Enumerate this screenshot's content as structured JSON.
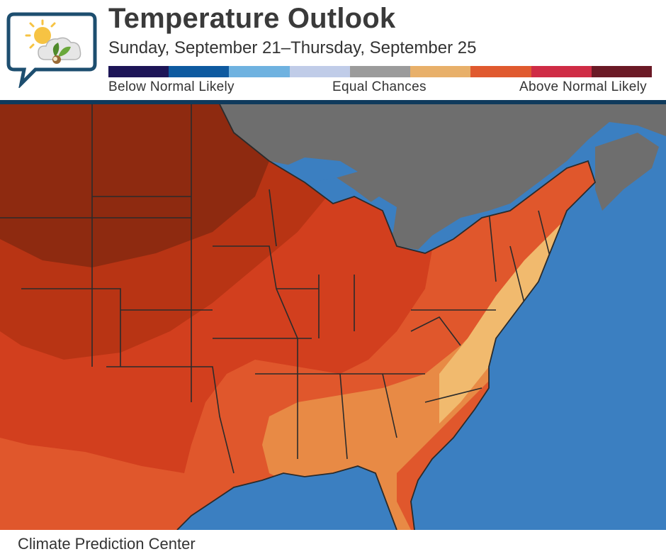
{
  "header": {
    "title": "Temperature Outlook",
    "subtitle": "Sunday, September 21–Thursday, September 25"
  },
  "legend": {
    "colors": [
      "#1d1557",
      "#0e5aa0",
      "#6fb2e0",
      "#c0cce8",
      "#9b9b9b",
      "#e8b06a",
      "#e05a2f",
      "#cf2c45",
      "#6b1a26"
    ],
    "label_below": "Below Normal Likely",
    "label_equal": "Equal Chances",
    "label_above": "Above Normal Likely"
  },
  "map": {
    "ocean_color": "#3b7fc1",
    "land_outside_color": "#6e6e6e",
    "category_colors": {
      "above_darkest": "#8e2a10",
      "above_dark": "#b83414",
      "above_mid": "#d23f1e",
      "above_light": "#e0572c",
      "above_lighter": "#e88a45",
      "above_lightest": "#f1ba6e"
    }
  },
  "footer": {
    "credit": "Climate Prediction Center"
  }
}
